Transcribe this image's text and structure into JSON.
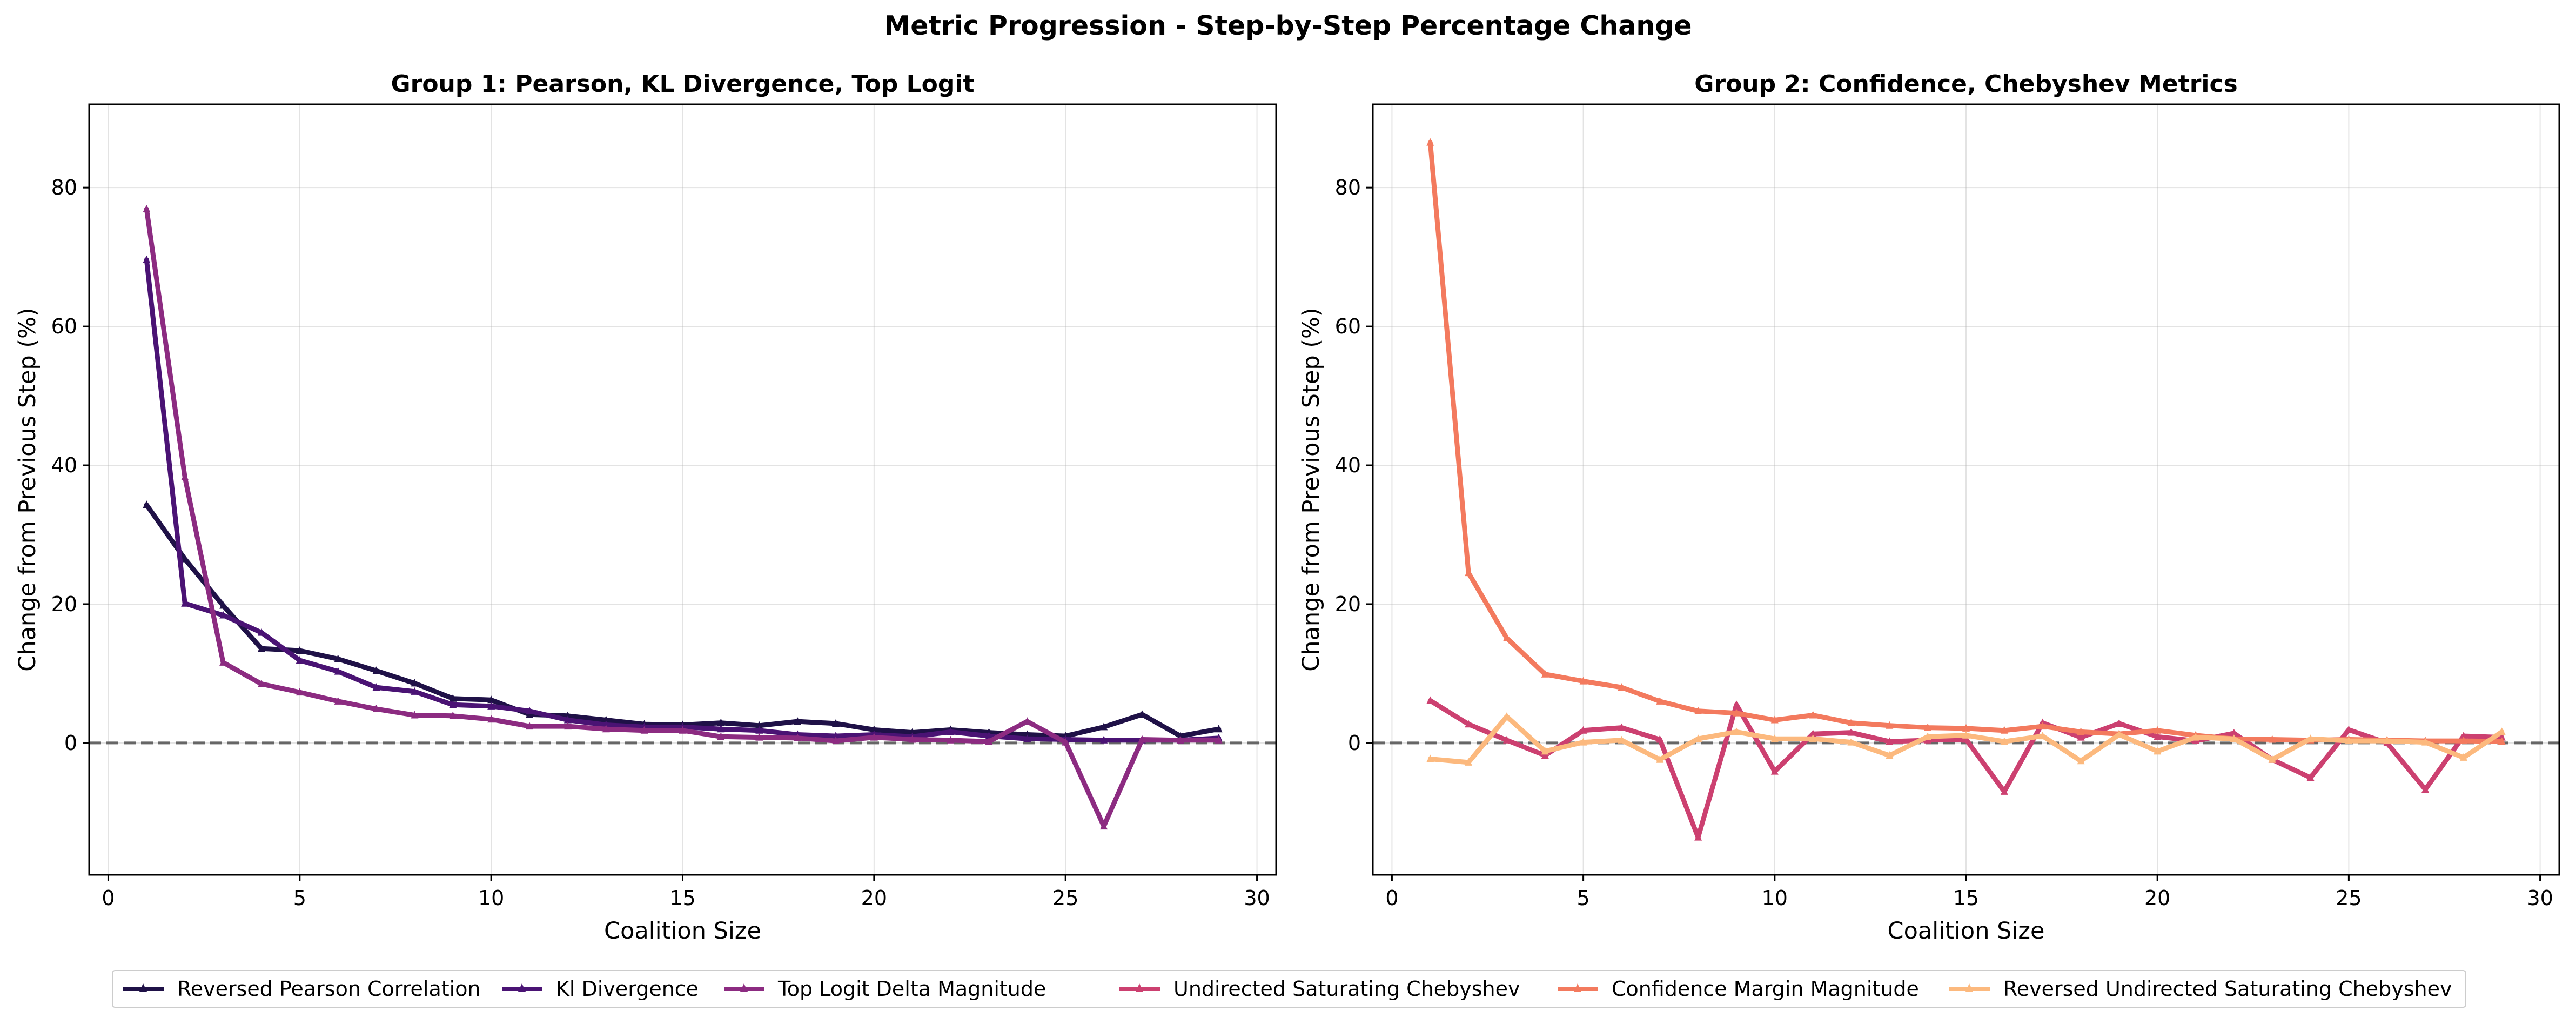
{
  "figure": {
    "title": "Metric Progression - Step-by-Step Percentage Change"
  },
  "legend": {
    "placement": "bottom-center",
    "entries": [
      {
        "name": "Reversed Pearson Correlation",
        "color": "#1f1147"
      },
      {
        "name": "Kl Divergence",
        "color": "#4a1374"
      },
      {
        "name": "Top Logit Delta Magnitude",
        "color": "#8c2b81"
      },
      {
        "name": "Undirected Saturating Chebyshev",
        "color": "#cc4070"
      },
      {
        "name": "Confidence Margin Magnitude",
        "color": "#f37a5e"
      },
      {
        "name": "Reversed Undirected Saturating Chebyshev",
        "color": "#fcb97e"
      }
    ]
  },
  "chart_data": [
    {
      "type": "line",
      "title": "Group 1: Pearson, KL Divergence, Top Logit",
      "xlabel": "Coalition Size",
      "ylabel": "Change from Previous Step (%)",
      "xlim": [
        -0.5,
        30.5
      ],
      "ylim": [
        -19,
        92
      ],
      "xticks": [
        0,
        5,
        10,
        15,
        20,
        25,
        30
      ],
      "yticks": [
        0,
        20,
        40,
        60,
        80
      ],
      "grid": true,
      "reference_line": {
        "y": 0,
        "style": "dashed",
        "color": "#666666"
      },
      "x": [
        1,
        2,
        3,
        4,
        5,
        6,
        7,
        8,
        9,
        10,
        11,
        12,
        13,
        14,
        15,
        16,
        17,
        18,
        19,
        20,
        21,
        22,
        23,
        24,
        25,
        26,
        27,
        28,
        29
      ],
      "series": [
        {
          "name": "Reversed Pearson Correlation",
          "color": "#1f1147",
          "values": [
            34.3,
            26.5,
            19.8,
            13.6,
            13.3,
            12.1,
            10.4,
            8.6,
            6.4,
            6.2,
            4.1,
            3.9,
            3.3,
            2.7,
            2.6,
            2.9,
            2.5,
            3.1,
            2.8,
            1.9,
            1.5,
            1.9,
            1.5,
            1.2,
            1.0,
            2.3,
            4.1,
            1.0,
            2.0
          ]
        },
        {
          "name": "Kl Divergence",
          "color": "#4a1374",
          "values": [
            69.6,
            20.1,
            18.4,
            15.9,
            11.9,
            10.3,
            8.0,
            7.4,
            5.5,
            5.3,
            4.6,
            3.3,
            2.6,
            2.3,
            2.3,
            2.0,
            1.8,
            1.2,
            1.0,
            1.2,
            0.9,
            1.6,
            1.0,
            0.6,
            0.5,
            0.4,
            0.4,
            0.4,
            0.7
          ]
        },
        {
          "name": "Top Logit Delta Magnitude",
          "color": "#8c2b81",
          "values": [
            76.9,
            38.3,
            11.6,
            8.5,
            7.3,
            6.0,
            4.9,
            4.0,
            3.9,
            3.4,
            2.4,
            2.4,
            2.0,
            1.8,
            1.8,
            0.9,
            0.8,
            0.7,
            0.3,
            0.8,
            0.5,
            0.4,
            0.2,
            3.1,
            0.1,
            -12.0,
            0.5,
            0.4,
            0.4
          ]
        },
        {
          "name": "Undirected Saturating Chebyshev",
          "color": "#cc4070",
          "values": [
            6.1,
            2.7,
            0.4,
            -1.8,
            1.8,
            2.2,
            0.5,
            -13.6,
            5.5,
            -4.1,
            1.3,
            1.5,
            0.2,
            0.4,
            0.5,
            -7.0,
            2.9,
            0.8,
            2.8,
            0.9,
            0.3,
            1.4,
            -2.4,
            -5.0,
            1.9,
            0.0,
            -6.7,
            1.0,
            0.8
          ]
        },
        {
          "name": "Confidence Margin Magnitude",
          "color": "#f37a5e",
          "values": [
            86.5,
            24.5,
            15.1,
            9.9,
            8.9,
            8.0,
            6.0,
            4.6,
            4.3,
            3.3,
            4.0,
            2.9,
            2.5,
            2.2,
            2.1,
            1.8,
            2.4,
            1.6,
            1.3,
            1.8,
            1.1,
            0.6,
            0.5,
            0.4,
            0.5,
            0.4,
            0.3,
            0.3,
            0.2
          ]
        },
        {
          "name": "Reversed Undirected Saturating Chebyshev",
          "color": "#fcb97e",
          "values": [
            -2.3,
            -2.8,
            3.8,
            -1.2,
            0.1,
            0.4,
            -2.4,
            0.6,
            1.6,
            0.6,
            0.6,
            0.1,
            -1.8,
            0.9,
            1.1,
            0.2,
            1.0,
            -2.6,
            1.2,
            -1.2,
            0.8,
            0.6,
            -2.4,
            0.6,
            0.3,
            0.3,
            0.1,
            -2.1,
            1.6
          ]
        }
      ]
    },
    {
      "type": "line",
      "title": "Group 2: Confidence, Chebyshev Metrics",
      "xlabel": "Coalition Size",
      "ylabel": "Change from Previous Step (%)",
      "xlim": [
        -0.5,
        30.5
      ],
      "ylim": [
        -19,
        92
      ],
      "xticks": [
        0,
        5,
        10,
        15,
        20,
        25,
        30
      ],
      "yticks": [
        0,
        20,
        40,
        60,
        80
      ],
      "grid": true,
      "reference_line": {
        "y": 0,
        "style": "dashed",
        "color": "#666666"
      },
      "x": [
        1,
        2,
        3,
        4,
        5,
        6,
        7,
        8,
        9,
        10,
        11,
        12,
        13,
        14,
        15,
        16,
        17,
        18,
        19,
        20,
        21,
        22,
        23,
        24,
        25,
        26,
        27,
        28,
        29
      ],
      "series": []
    }
  ]
}
